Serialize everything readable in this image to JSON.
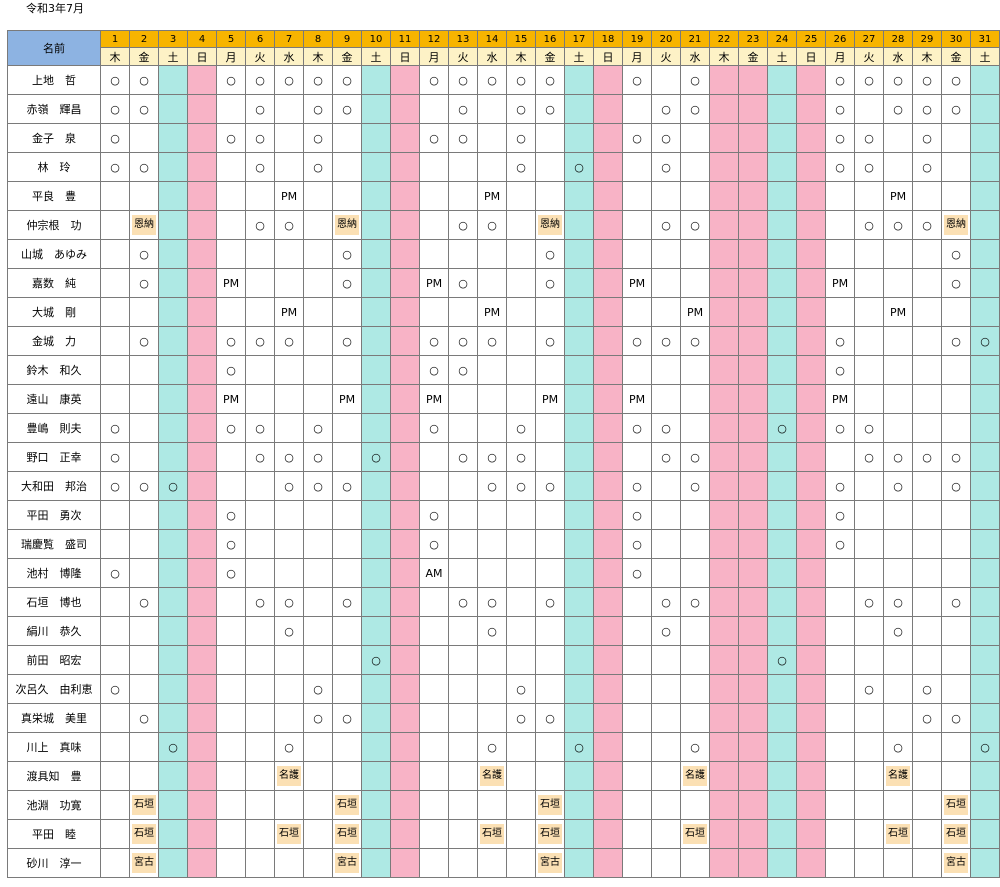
{
  "title": "令和3年7月",
  "header": {
    "name_label": "名前",
    "days": [
      "1",
      "2",
      "3",
      "4",
      "5",
      "6",
      "7",
      "8",
      "9",
      "10",
      "11",
      "12",
      "13",
      "14",
      "15",
      "16",
      "17",
      "18",
      "19",
      "20",
      "21",
      "22",
      "23",
      "24",
      "25",
      "26",
      "27",
      "28",
      "29",
      "30",
      "31"
    ],
    "weekdays": [
      "木",
      "金",
      "土",
      "日",
      "月",
      "火",
      "水",
      "木",
      "金",
      "土",
      "日",
      "月",
      "火",
      "水",
      "木",
      "金",
      "土",
      "日",
      "月",
      "火",
      "水",
      "木",
      "金",
      "土",
      "日",
      "月",
      "火",
      "水",
      "木",
      "金",
      "土"
    ]
  },
  "colors": {
    "header_day": "#f7b400",
    "header_dow": "#fdf2c6",
    "name_header": "#8db3e2",
    "saturday": "#aee9e4",
    "sunday_holiday": "#f8b3c6",
    "tag": "#fbe0b4"
  },
  "pink_columns": [
    4,
    11,
    18,
    22,
    23,
    25
  ],
  "cyan_columns": [
    3,
    10,
    17,
    24,
    31
  ],
  "tag_values": [
    "恩納",
    "名護",
    "石垣",
    "宮古"
  ],
  "rows": [
    {
      "name": "上地　哲",
      "cells": [
        "○",
        "○",
        "",
        "",
        "○",
        "○",
        "○",
        "○",
        "○",
        "",
        "",
        "○",
        "○",
        "○",
        "○",
        "○",
        "",
        "",
        "○",
        "",
        "○",
        "",
        "",
        "",
        "",
        "○",
        "○",
        "○",
        "○",
        "○",
        ""
      ]
    },
    {
      "name": "赤嶺　輝昌",
      "cells": [
        "○",
        "○",
        "",
        "",
        "",
        "○",
        "",
        "○",
        "○",
        "",
        "",
        "",
        "○",
        "",
        "○",
        "○",
        "",
        "",
        "",
        "○",
        "○",
        "",
        "",
        "",
        "",
        "○",
        "",
        "○",
        "○",
        "○",
        ""
      ]
    },
    {
      "name": "金子　泉",
      "cells": [
        "○",
        "",
        "",
        "",
        "○",
        "○",
        "",
        "○",
        "",
        "",
        "",
        "○",
        "○",
        "",
        "○",
        "",
        "",
        "",
        "○",
        "○",
        "",
        "",
        "",
        "",
        "",
        "○",
        "○",
        "",
        "○",
        "",
        ""
      ]
    },
    {
      "name": "林　玲",
      "cells": [
        "○",
        "○",
        "",
        "",
        "",
        "○",
        "",
        "○",
        "",
        "",
        "",
        "",
        "",
        "",
        "○",
        "",
        "○",
        "",
        "",
        "○",
        "",
        "",
        "",
        "",
        "",
        "○",
        "○",
        "",
        "○",
        "",
        ""
      ]
    },
    {
      "name": "平良　豊",
      "cells": [
        "",
        "",
        "",
        "",
        "",
        "",
        "PM",
        "",
        "",
        "",
        "",
        "",
        "",
        "PM",
        "",
        "",
        "",
        "",
        "",
        "",
        "",
        "",
        "",
        "",
        "",
        "",
        "",
        "PM",
        "",
        "",
        ""
      ]
    },
    {
      "name": "仲宗根　功",
      "cells": [
        "",
        "恩納",
        "",
        "",
        "",
        "○",
        "○",
        "",
        "恩納",
        "",
        "",
        "",
        "○",
        "○",
        "",
        "恩納",
        "",
        "",
        "",
        "○",
        "○",
        "",
        "",
        "",
        "",
        "",
        "○",
        "○",
        "○",
        "恩納",
        ""
      ]
    },
    {
      "name": "山城　あゆみ",
      "cells": [
        "",
        "○",
        "",
        "",
        "",
        "",
        "",
        "",
        "○",
        "",
        "",
        "",
        "",
        "",
        "",
        "○",
        "",
        "",
        "",
        "",
        "",
        "",
        "",
        "",
        "",
        "",
        "",
        "",
        "",
        "○",
        ""
      ]
    },
    {
      "name": "嘉数　純",
      "cells": [
        "",
        "○",
        "",
        "",
        "PM",
        "",
        "",
        "",
        "○",
        "",
        "",
        "PM",
        "○",
        "",
        "",
        "○",
        "",
        "",
        "PM",
        "",
        "",
        "",
        "",
        "",
        "",
        "PM",
        "",
        "",
        "",
        "○",
        ""
      ]
    },
    {
      "name": "大城　剛",
      "cells": [
        "",
        "",
        "",
        "",
        "",
        "",
        "PM",
        "",
        "",
        "",
        "",
        "",
        "",
        "PM",
        "",
        "",
        "",
        "",
        "",
        "",
        "PM",
        "",
        "",
        "",
        "",
        "",
        "",
        "PM",
        "",
        "",
        ""
      ]
    },
    {
      "name": "金城　力",
      "cells": [
        "",
        "○",
        "",
        "",
        "○",
        "○",
        "○",
        "",
        "○",
        "",
        "",
        "○",
        "○",
        "○",
        "",
        "○",
        "",
        "",
        "○",
        "○",
        "○",
        "",
        "",
        "",
        "",
        "○",
        "",
        "",
        "",
        "○",
        "○"
      ]
    },
    {
      "name": "鈴木　和久",
      "cells": [
        "",
        "",
        "",
        "",
        "○",
        "",
        "",
        "",
        "",
        "",
        "",
        "○",
        "○",
        "",
        "",
        "",
        "",
        "",
        "",
        "",
        "",
        "",
        "",
        "",
        "",
        "○",
        "",
        "",
        "",
        "",
        ""
      ]
    },
    {
      "name": "遠山　康英",
      "cells": [
        "",
        "",
        "",
        "",
        "PM",
        "",
        "",
        "",
        "PM",
        "",
        "",
        "PM",
        "",
        "",
        "",
        "PM",
        "",
        "",
        "PM",
        "",
        "",
        "",
        "",
        "",
        "",
        "PM",
        "",
        "",
        "",
        "",
        ""
      ]
    },
    {
      "name": "豊嶋　則夫",
      "cells": [
        "○",
        "",
        "",
        "",
        "○",
        "○",
        "",
        "○",
        "",
        "",
        "",
        "○",
        "",
        "",
        "○",
        "",
        "",
        "",
        "○",
        "○",
        "",
        "",
        "",
        "○",
        "",
        "○",
        "○",
        "",
        "",
        "",
        ""
      ]
    },
    {
      "name": "野口　正幸",
      "cells": [
        "○",
        "",
        "",
        "",
        "",
        "○",
        "○",
        "○",
        "",
        "○",
        "",
        "",
        "○",
        "○",
        "○",
        "",
        "",
        "",
        "",
        "○",
        "○",
        "",
        "",
        "",
        "",
        "",
        "○",
        "○",
        "○",
        "○",
        ""
      ]
    },
    {
      "name": "大和田　邦治",
      "cells": [
        "○",
        "○",
        "○",
        "",
        "",
        "",
        "○",
        "○",
        "○",
        "",
        "",
        "",
        "",
        "○",
        "○",
        "○",
        "",
        "",
        "○",
        "",
        "○",
        "",
        "",
        "",
        "",
        "○",
        "",
        "○",
        "",
        "○",
        ""
      ]
    },
    {
      "name": "平田　勇次",
      "cells": [
        "",
        "",
        "",
        "",
        "○",
        "",
        "",
        "",
        "",
        "",
        "",
        "○",
        "",
        "",
        "",
        "",
        "",
        "",
        "○",
        "",
        "",
        "",
        "",
        "",
        "",
        "○",
        "",
        "",
        "",
        "",
        ""
      ]
    },
    {
      "name": "瑞慶覧　盛司",
      "cells": [
        "",
        "",
        "",
        "",
        "○",
        "",
        "",
        "",
        "",
        "",
        "",
        "○",
        "",
        "",
        "",
        "",
        "",
        "",
        "○",
        "",
        "",
        "",
        "",
        "",
        "",
        "○",
        "",
        "",
        "",
        "",
        ""
      ]
    },
    {
      "name": "池村　博隆",
      "cells": [
        "○",
        "",
        "",
        "",
        "○",
        "",
        "",
        "",
        "",
        "",
        "",
        "AM",
        "",
        "",
        "",
        "",
        "",
        "",
        "○",
        "",
        "",
        "",
        "",
        "",
        "",
        "",
        "",
        "",
        "",
        "",
        ""
      ]
    },
    {
      "name": "石垣　博也",
      "cells": [
        "",
        "○",
        "",
        "",
        "",
        "○",
        "○",
        "",
        "○",
        "",
        "",
        "",
        "○",
        "○",
        "",
        "○",
        "",
        "",
        "",
        "○",
        "○",
        "",
        "",
        "",
        "",
        "",
        "○",
        "○",
        "",
        "○",
        ""
      ]
    },
    {
      "name": "絹川　恭久",
      "cells": [
        "",
        "",
        "",
        "",
        "",
        "",
        "○",
        "",
        "",
        "",
        "",
        "",
        "",
        "○",
        "",
        "",
        "",
        "",
        "",
        "○",
        "",
        "",
        "",
        "",
        "",
        "",
        "",
        "○",
        "",
        "",
        ""
      ]
    },
    {
      "name": "前田　昭宏",
      "cells": [
        "",
        "",
        "",
        "",
        "",
        "",
        "",
        "",
        "",
        "○",
        "",
        "",
        "",
        "",
        "",
        "",
        "",
        "",
        "",
        "",
        "",
        "",
        "",
        "○",
        "",
        "",
        "",
        "",
        "",
        "",
        ""
      ]
    },
    {
      "name": "次呂久　由利恵",
      "cells": [
        "○",
        "",
        "",
        "",
        "",
        "",
        "",
        "○",
        "",
        "",
        "",
        "",
        "",
        "",
        "○",
        "",
        "",
        "",
        "",
        "",
        "",
        "",
        "",
        "",
        "",
        "",
        "○",
        "",
        "○",
        "",
        ""
      ]
    },
    {
      "name": "真栄城　美里",
      "cells": [
        "",
        "○",
        "",
        "",
        "",
        "",
        "",
        "○",
        "○",
        "",
        "",
        "",
        "",
        "",
        "○",
        "○",
        "",
        "",
        "",
        "",
        "",
        "",
        "",
        "",
        "",
        "",
        "",
        "",
        "○",
        "○",
        ""
      ]
    },
    {
      "name": "川上　真味",
      "cells": [
        "",
        "",
        "○",
        "",
        "",
        "",
        "○",
        "",
        "",
        "",
        "",
        "",
        "",
        "○",
        "",
        "",
        "○",
        "",
        "",
        "",
        "○",
        "",
        "",
        "",
        "",
        "",
        "",
        "○",
        "",
        "",
        "○"
      ]
    },
    {
      "name": "渡具知　豊",
      "cells": [
        "",
        "",
        "",
        "",
        "",
        "",
        "名護",
        "",
        "",
        "",
        "",
        "",
        "",
        "名護",
        "",
        "",
        "",
        "",
        "",
        "",
        "名護",
        "",
        "",
        "",
        "",
        "",
        "",
        "名護",
        "",
        "",
        ""
      ]
    },
    {
      "name": "池淵　功寛",
      "cells": [
        "",
        "石垣",
        "",
        "",
        "",
        "",
        "",
        "",
        "石垣",
        "",
        "",
        "",
        "",
        "",
        "",
        "石垣",
        "",
        "",
        "",
        "",
        "",
        "",
        "",
        "",
        "",
        "",
        "",
        "",
        "",
        "石垣",
        ""
      ]
    },
    {
      "name": "平田　睦",
      "cells": [
        "",
        "石垣",
        "",
        "",
        "",
        "",
        "石垣",
        "",
        "石垣",
        "",
        "",
        "",
        "",
        "石垣",
        "",
        "石垣",
        "",
        "",
        "",
        "",
        "石垣",
        "",
        "",
        "",
        "",
        "",
        "",
        "石垣",
        "",
        "石垣",
        ""
      ]
    },
    {
      "name": "砂川　淳一",
      "cells": [
        "",
        "宮古",
        "",
        "",
        "",
        "",
        "",
        "",
        "宮古",
        "",
        "",
        "",
        "",
        "",
        "",
        "宮古",
        "",
        "",
        "",
        "",
        "",
        "",
        "",
        "",
        "",
        "",
        "",
        "",
        "",
        "宮古",
        ""
      ]
    }
  ]
}
